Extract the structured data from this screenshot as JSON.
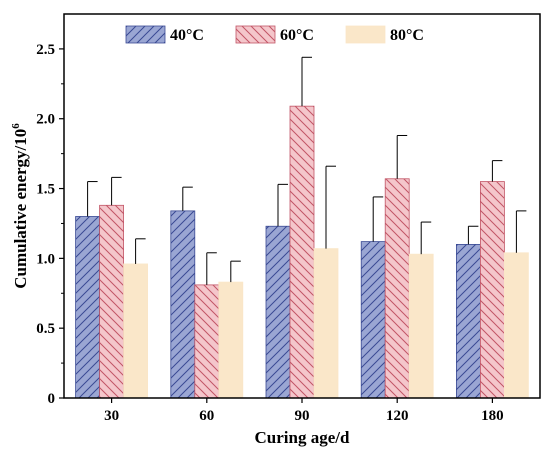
{
  "chart_data": {
    "type": "bar",
    "title": "",
    "xlabel": "Curing age/d",
    "ylabel": "Cumulative energy/10",
    "ylabel_superscript": "6",
    "categories": [
      "30",
      "60",
      "90",
      "120",
      "180"
    ],
    "ylim": [
      0,
      2.75
    ],
    "yticks": [
      "0",
      "0.5",
      "1.0",
      "1.5",
      "2.0",
      "2.5"
    ],
    "grid": false,
    "legend_position": "top",
    "series": [
      {
        "name": "40°C",
        "values": [
          1.3,
          1.34,
          1.23,
          1.12,
          1.1
        ],
        "errors": [
          0.25,
          0.17,
          0.3,
          0.32,
          0.13
        ],
        "color": "#9aa6d3",
        "hatch_color": "#3a4a94",
        "hatch": "forward"
      },
      {
        "name": "60°C",
        "values": [
          1.38,
          0.81,
          2.09,
          1.57,
          1.55
        ],
        "errors": [
          0.2,
          0.23,
          0.35,
          0.31,
          0.15
        ],
        "color": "#f4c6cb",
        "hatch_color": "#c25566",
        "hatch": "back"
      },
      {
        "name": "80°C",
        "values": [
          0.96,
          0.83,
          1.07,
          1.03,
          1.04
        ],
        "errors": [
          0.18,
          0.15,
          0.59,
          0.23,
          0.3
        ],
        "color": "#fae7c9",
        "hatch_color": "",
        "hatch": "none"
      }
    ]
  }
}
